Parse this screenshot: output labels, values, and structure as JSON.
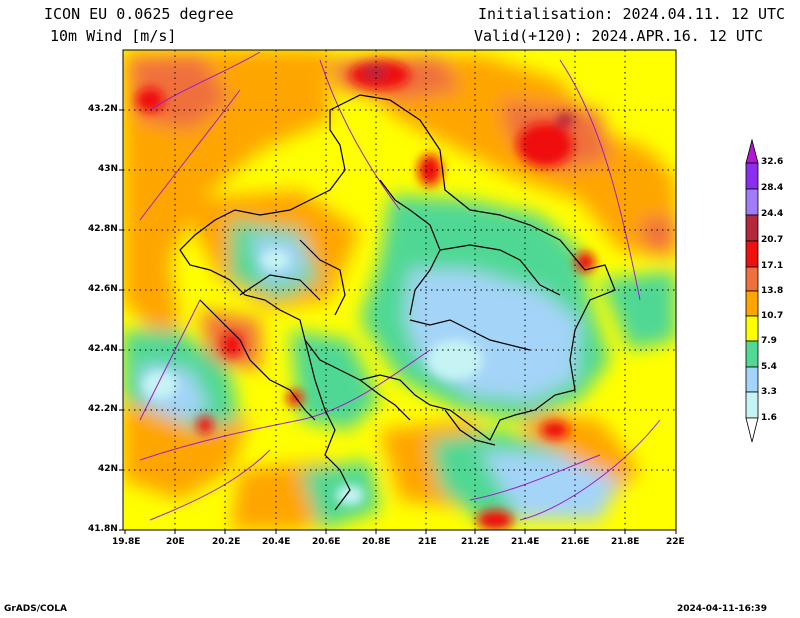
{
  "header": {
    "model": "ICON EU 0.0625 degree",
    "field": "10m Wind [m/s]",
    "init": "Initialisation: 2024.04.11. 12 UTC",
    "valid": "Valid(+120): 2024.APR.16. 12 UTC"
  },
  "axes": {
    "lat_labels": [
      "43.2N",
      "43N",
      "42.8N",
      "42.6N",
      "42.4N",
      "42.2N",
      "42N",
      "41.8N"
    ],
    "lon_labels": [
      "19.8E",
      "20E",
      "20.2E",
      "20.4E",
      "20.6E",
      "20.8E",
      "21E",
      "21.2E",
      "21.4E",
      "21.6E",
      "21.8E",
      "22E"
    ]
  },
  "colorbar": {
    "labels": [
      "1.6",
      "3.3",
      "5.4",
      "7.9",
      "10.7",
      "13.8",
      "17.1",
      "20.7",
      "24.4",
      "28.4",
      "32.6"
    ],
    "colors": [
      "#c6f4f4",
      "#a4d4f8",
      "#50d894",
      "#ffff00",
      "#ffa500",
      "#f0703c",
      "#ef1010",
      "#b4283c",
      "#a07cf8",
      "#8a2ef0",
      "#b414d4"
    ]
  },
  "footer": {
    "left": "GrADS/COLA",
    "right": "2024-04-11-16:39"
  }
}
